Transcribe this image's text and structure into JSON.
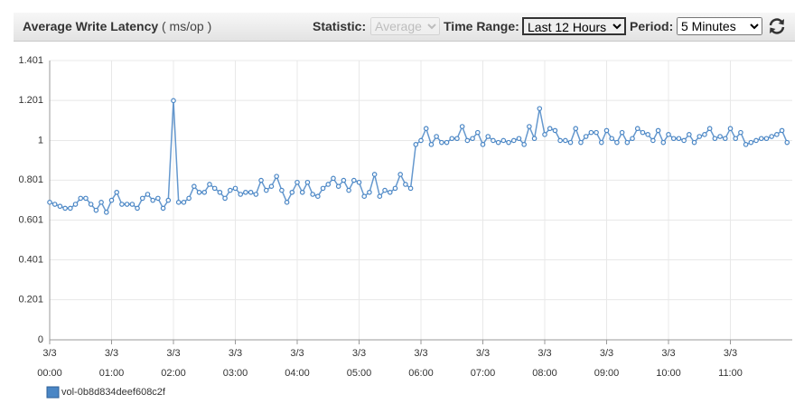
{
  "header": {
    "title": "Average Write Latency",
    "unit": "( ms/op )"
  },
  "controls": {
    "statistic_label": "Statistic:",
    "statistic_value": "Average",
    "time_range_label": "Time Range:",
    "time_range_value": "Last 12 Hours",
    "period_label": "Period:",
    "period_value": "5 Minutes"
  },
  "chart_data": {
    "type": "line",
    "x": [
      0,
      5,
      10,
      15,
      20,
      25,
      30,
      35,
      40,
      45,
      50,
      55,
      60,
      65,
      70,
      75,
      80,
      85,
      90,
      95,
      100,
      105,
      110,
      115,
      120,
      125,
      130,
      135,
      140,
      145,
      150,
      155,
      160,
      165,
      170,
      175,
      180,
      185,
      190,
      195,
      200,
      205,
      210,
      215,
      220,
      225,
      230,
      235,
      240,
      245,
      250,
      255,
      260,
      265,
      270,
      275,
      280,
      285,
      290,
      295,
      300,
      305,
      310,
      315,
      320,
      325,
      330,
      335,
      340,
      345,
      350,
      355,
      360,
      365,
      370,
      375,
      380,
      385,
      390,
      395,
      400,
      405,
      410,
      415,
      420,
      425,
      430,
      435,
      440,
      445,
      450,
      455,
      460,
      465,
      470,
      475,
      480,
      485,
      490,
      495,
      500,
      505,
      510,
      515,
      520,
      525,
      530,
      535,
      540,
      545,
      550,
      555,
      560,
      565,
      570,
      575,
      580,
      585,
      590,
      595,
      600,
      605,
      610,
      615,
      620,
      625,
      630,
      635,
      640,
      645,
      650,
      655,
      660,
      665,
      670,
      675,
      680,
      685,
      690,
      695,
      700,
      705,
      710,
      715
    ],
    "series": [
      {
        "name": "vol-0b8d834deef608c2f",
        "color": "#4a86c5",
        "values": [
          0.69,
          0.68,
          0.67,
          0.66,
          0.66,
          0.68,
          0.71,
          0.71,
          0.68,
          0.65,
          0.69,
          0.64,
          0.7,
          0.74,
          0.68,
          0.68,
          0.68,
          0.66,
          0.71,
          0.73,
          0.7,
          0.71,
          0.66,
          0.7,
          1.2,
          0.69,
          0.69,
          0.71,
          0.77,
          0.74,
          0.74,
          0.78,
          0.76,
          0.74,
          0.71,
          0.75,
          0.76,
          0.73,
          0.74,
          0.74,
          0.73,
          0.8,
          0.75,
          0.77,
          0.82,
          0.75,
          0.69,
          0.74,
          0.79,
          0.74,
          0.79,
          0.73,
          0.72,
          0.76,
          0.78,
          0.81,
          0.77,
          0.8,
          0.75,
          0.8,
          0.79,
          0.72,
          0.74,
          0.83,
          0.72,
          0.75,
          0.74,
          0.76,
          0.83,
          0.78,
          0.76,
          0.98,
          1.0,
          1.06,
          0.98,
          1.02,
          0.99,
          0.99,
          1.01,
          1.01,
          1.07,
          1.0,
          1.01,
          1.04,
          0.98,
          1.02,
          1.0,
          0.99,
          1.0,
          0.99,
          1.0,
          1.01,
          0.98,
          1.07,
          1.01,
          1.16,
          1.03,
          1.06,
          1.05,
          1.0,
          1.0,
          0.99,
          1.06,
          0.99,
          1.02,
          1.04,
          1.04,
          0.99,
          1.05,
          1.01,
          0.99,
          1.04,
          0.99,
          1.01,
          1.06,
          1.04,
          1.03,
          1.0,
          1.05,
          0.99,
          1.03,
          1.01,
          1.01,
          1.0,
          1.03,
          0.99,
          1.02,
          1.03,
          1.06,
          1.01,
          1.02,
          1.01,
          1.06,
          1.01,
          1.04,
          0.98,
          0.99,
          1.0,
          1.01,
          1.01,
          1.02,
          1.03,
          1.05,
          0.99
        ]
      }
    ],
    "xlim": [
      0,
      720
    ],
    "xticks": [
      {
        "value": 0,
        "label": "00:00"
      },
      {
        "value": 60,
        "label": "01:00"
      },
      {
        "value": 120,
        "label": "02:00"
      },
      {
        "value": 180,
        "label": "03:00"
      },
      {
        "value": 240,
        "label": "04:00"
      },
      {
        "value": 300,
        "label": "05:00"
      },
      {
        "value": 360,
        "label": "06:00"
      },
      {
        "value": 420,
        "label": "07:00"
      },
      {
        "value": 480,
        "label": "08:00"
      },
      {
        "value": 540,
        "label": "09:00"
      },
      {
        "value": 600,
        "label": "10:00"
      },
      {
        "value": 660,
        "label": "11:00"
      }
    ],
    "xtick_dates": [
      "3/3",
      "3/3",
      "3/3",
      "3/3",
      "3/3",
      "3/3",
      "3/3",
      "3/3",
      "3/3",
      "3/3",
      "3/3",
      "3/3"
    ],
    "ylim": [
      0,
      1.401
    ],
    "yticks": [
      0,
      0.201,
      0.401,
      0.601,
      0.801,
      1,
      1.201,
      1.401
    ],
    "grid": true
  }
}
